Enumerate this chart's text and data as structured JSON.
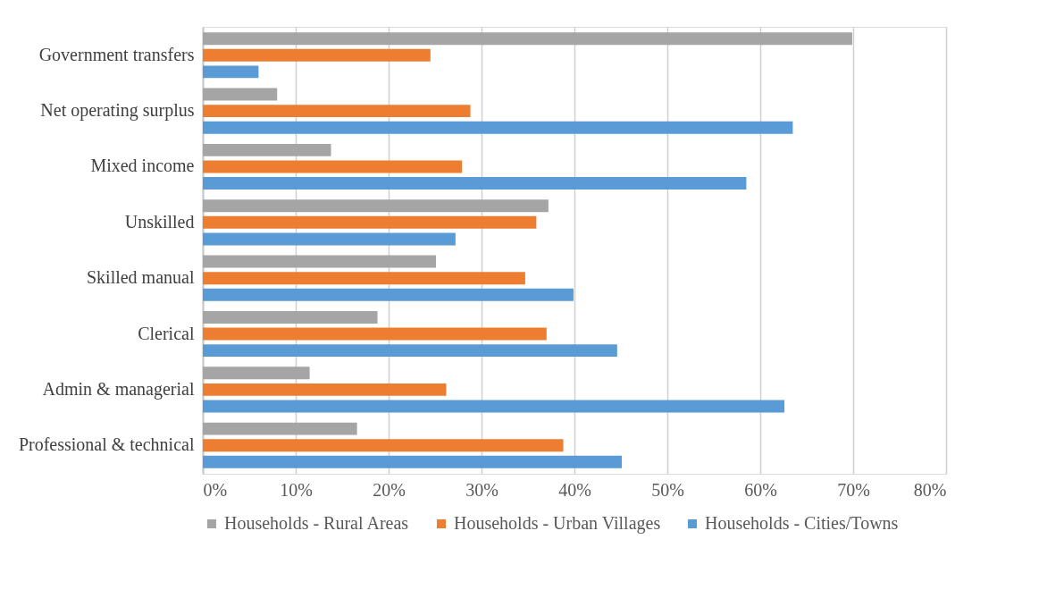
{
  "chart_data": {
    "type": "bar",
    "orientation": "horizontal",
    "categories": [
      "Government transfers",
      "Net operating surplus",
      "Mixed income",
      "Unskilled",
      "Skilled manual",
      "Clerical",
      "Admin & managerial",
      "Professional & technical"
    ],
    "series": [
      {
        "name": "Households - Rural Areas",
        "color": "#a5a5a5",
        "values": [
          69.9,
          8.0,
          13.8,
          37.2,
          25.1,
          18.8,
          11.5,
          16.6
        ]
      },
      {
        "name": "Households - Urban Villages",
        "color": "#ed7d31",
        "values": [
          24.5,
          28.8,
          27.9,
          35.9,
          34.7,
          37.0,
          26.2,
          38.8
        ]
      },
      {
        "name": "Households - Cities/Towns",
        "color": "#5b9bd5",
        "values": [
          6.0,
          63.5,
          58.5,
          27.2,
          39.9,
          44.6,
          62.6,
          45.1
        ]
      }
    ],
    "xlim": [
      0,
      80
    ],
    "xticks": [
      {
        "value": 0,
        "label": "0%"
      },
      {
        "value": 10,
        "label": "10%"
      },
      {
        "value": 20,
        "label": "20%"
      },
      {
        "value": 30,
        "label": "30%"
      },
      {
        "value": 40,
        "label": "40%"
      },
      {
        "value": 50,
        "label": "50%"
      },
      {
        "value": 60,
        "label": "60%"
      },
      {
        "value": 70,
        "label": "70%"
      },
      {
        "value": 80,
        "label": "80%"
      }
    ],
    "grid": "x",
    "legend": "bottom"
  }
}
